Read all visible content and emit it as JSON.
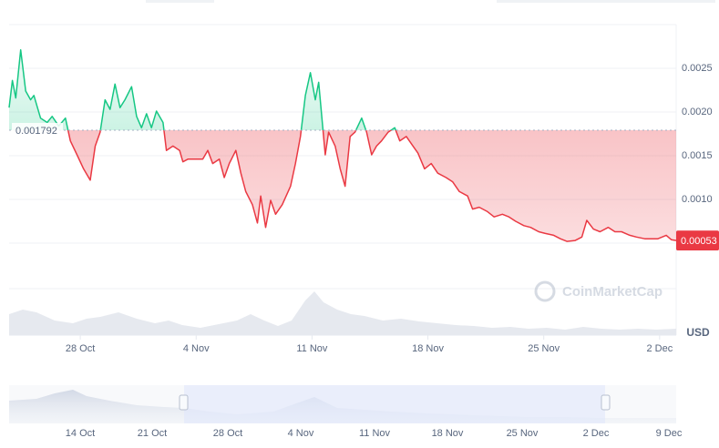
{
  "chart_data": {
    "type": "line",
    "x": [
      -4.3,
      -4.1,
      -3.9,
      -3.6,
      -3.3,
      -3.0,
      -2.8,
      -2.4,
      -2.0,
      -1.7,
      -1.3,
      -0.9,
      -0.6,
      -0.2,
      0.2,
      0.6,
      0.9,
      1.2,
      1.5,
      1.8,
      2.1,
      2.4,
      2.7,
      3.1,
      3.4,
      3.7,
      4.0,
      4.3,
      4.6,
      5.0,
      5.2,
      5.6,
      6.0,
      6.2,
      6.5,
      6.9,
      7.4,
      7.7,
      8.0,
      8.4,
      8.7,
      9.0,
      9.4,
      9.7,
      10.0,
      10.4,
      10.7,
      10.9,
      11.2,
      11.5,
      11.8,
      12.2,
      12.7,
      13.0,
      13.3,
      13.6,
      13.9,
      14.2,
      14.4,
      14.8,
      15.0,
      15.4,
      15.7,
      16.0,
      16.3,
      16.6,
      17.0,
      17.3,
      17.6,
      17.9,
      18.2,
      18.6,
      19.0,
      19.3,
      19.7,
      20.1,
      20.4,
      20.8,
      21.2,
      21.6,
      22.1,
      22.5,
      22.9,
      23.4,
      23.7,
      24.1,
      24.6,
      25.0,
      25.5,
      25.9,
      26.3,
      26.8,
      27.2,
      27.7,
      28.1,
      28.6,
      29.0,
      29.4,
      29.9,
      30.3,
      30.6,
      31.0,
      31.4,
      31.9,
      32.3,
      32.7,
      33.2,
      33.6,
      34.1,
      34.5,
      34.9,
      35.4,
      35.7,
      36.0
    ],
    "values": [
      0.00205,
      0.00236,
      0.00216,
      0.00271,
      0.00224,
      0.00214,
      0.00219,
      0.00193,
      0.00188,
      0.00195,
      0.00184,
      0.00193,
      0.00167,
      0.00151,
      0.00135,
      0.00122,
      0.00161,
      0.00177,
      0.00214,
      0.00203,
      0.00232,
      0.00205,
      0.00214,
      0.00229,
      0.00195,
      0.00182,
      0.00198,
      0.00182,
      0.00201,
      0.00188,
      0.00156,
      0.00161,
      0.00156,
      0.00143,
      0.00146,
      0.00146,
      0.00146,
      0.00156,
      0.00141,
      0.00146,
      0.00125,
      0.00141,
      0.00156,
      0.0013,
      0.00109,
      0.00094,
      0.00073,
      0.00104,
      0.00068,
      0.00099,
      0.00083,
      0.00094,
      0.00115,
      0.00141,
      0.00172,
      0.00219,
      0.00245,
      0.00214,
      0.00234,
      0.00151,
      0.00177,
      0.00161,
      0.00135,
      0.00115,
      0.00172,
      0.00177,
      0.00193,
      0.00177,
      0.00151,
      0.00161,
      0.00167,
      0.00177,
      0.00182,
      0.00167,
      0.00172,
      0.00161,
      0.00153,
      0.00135,
      0.00141,
      0.0013,
      0.00125,
      0.0012,
      0.00109,
      0.00104,
      0.00089,
      0.00091,
      0.00086,
      0.0008,
      0.00083,
      0.0008,
      0.00075,
      0.0007,
      0.00068,
      0.00063,
      0.00061,
      0.00059,
      0.00055,
      0.00052,
      0.00053,
      0.00057,
      0.00076,
      0.00066,
      0.00063,
      0.00068,
      0.00063,
      0.00063,
      0.00059,
      0.00057,
      0.00055,
      0.00055,
      0.00055,
      0.00059,
      0.00054,
      0.00053
    ],
    "colors": {
      "up": "#16c784",
      "down": "#ea3943"
    },
    "baseline": 0.001792,
    "current_price": 0.00053,
    "xlim": [
      -4.3,
      36.0
    ],
    "xticks": [
      {
        "value": 0,
        "label": "28 Oct"
      },
      {
        "value": 7,
        "label": "4 Nov"
      },
      {
        "value": 14,
        "label": "11 Nov"
      },
      {
        "value": 21,
        "label": "18 Nov"
      },
      {
        "value": 28,
        "label": "25 Nov"
      },
      {
        "value": 35,
        "label": "2 Dec"
      }
    ],
    "ylim": [
      0,
      0.003
    ],
    "yticks": [
      {
        "value": 0.0025,
        "label": "0.0025"
      },
      {
        "value": 0.002,
        "label": "0.0020"
      },
      0.0015,
      {
        "value": 0.001,
        "label": "0.0010"
      }
    ],
    "grid": true,
    "y_unit": "USD",
    "watermark": "CoinMarketCap",
    "navigator_labels": [
      "14 Oct",
      "21 Oct",
      "28 Oct",
      "4 Nov",
      "11 Nov",
      "18 Nov",
      "25 Nov",
      "2 Dec",
      "9 Dec"
    ]
  }
}
